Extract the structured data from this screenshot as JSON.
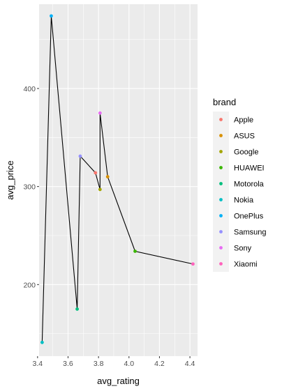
{
  "chart_data": {
    "type": "line",
    "xlabel": "avg_rating",
    "ylabel": "avg_price",
    "xlim": [
      3.41,
      4.45
    ],
    "ylim": [
      127,
      486
    ],
    "x_ticks": [
      3.4,
      3.6,
      3.8,
      4.0,
      4.2,
      4.4
    ],
    "x_tick_labels": [
      "3.4",
      "3.6",
      "3.8",
      "4.0",
      "4.2",
      "4.4"
    ],
    "y_ticks": [
      200,
      300,
      400
    ],
    "y_tick_labels": [
      "200",
      "300",
      "400"
    ],
    "grid": true,
    "legend": {
      "title": "brand",
      "placement": "right"
    },
    "series": [
      {
        "name": "Apple",
        "color": "#F8766D",
        "points": [
          {
            "x": 3.78,
            "y": 314
          }
        ]
      },
      {
        "name": "ASUS",
        "color": "#D89000",
        "points": [
          {
            "x": 3.86,
            "y": 310
          }
        ]
      },
      {
        "name": "Google",
        "color": "#A3A500",
        "points": [
          {
            "x": 3.81,
            "y": 297
          }
        ]
      },
      {
        "name": "HUAWEI",
        "color": "#39B600",
        "points": [
          {
            "x": 4.04,
            "y": 234
          }
        ]
      },
      {
        "name": "Motorola",
        "color": "#00BF7D",
        "points": [
          {
            "x": 3.66,
            "y": 175
          }
        ]
      },
      {
        "name": "Nokia",
        "color": "#00BFC4",
        "points": [
          {
            "x": 3.43,
            "y": 141
          }
        ]
      },
      {
        "name": "OnePlus",
        "color": "#00B0F6",
        "points": [
          {
            "x": 3.49,
            "y": 474
          }
        ]
      },
      {
        "name": "Samsung",
        "color": "#9590FF",
        "points": [
          {
            "x": 3.68,
            "y": 331
          }
        ]
      },
      {
        "name": "Sony",
        "color": "#E76BF3",
        "points": [
          {
            "x": 3.81,
            "y": 375
          }
        ]
      },
      {
        "name": "Xiaomi",
        "color": "#FF62BC",
        "points": [
          {
            "x": 4.42,
            "y": 221
          }
        ]
      }
    ]
  }
}
